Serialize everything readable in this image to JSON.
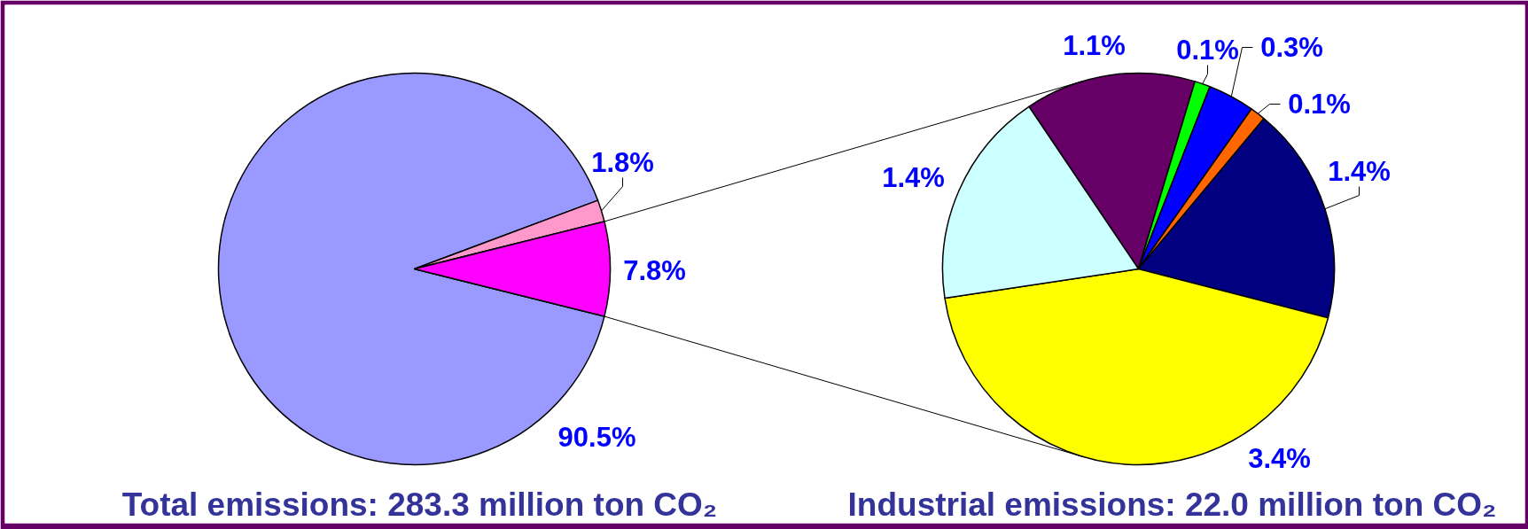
{
  "chart_data": [
    {
      "type": "pie",
      "title": "Total emissions: 283.3 million ton CO₂",
      "categories": [
        null,
        null,
        null
      ],
      "values": [
        90.5,
        1.8,
        7.8
      ],
      "colors": [
        "#9999ff",
        "#ff99cc",
        "#ff00ff"
      ],
      "value_labels": [
        "90.5%",
        "1.8%",
        "7.8%"
      ]
    },
    {
      "type": "pie",
      "title": "Industrial emissions: 22.0 million ton CO₂",
      "categories": [
        null,
        null,
        null,
        null,
        null,
        null,
        null
      ],
      "values": [
        1.1,
        0.1,
        0.3,
        0.1,
        1.4,
        3.4,
        1.4
      ],
      "colors": [
        "#660066",
        "#00ff00",
        "#0000ff",
        "#ff6600",
        "#000080",
        "#ffff00",
        "#ccffff"
      ],
      "value_labels": [
        "1.1%",
        "0.1%",
        "0.3%",
        "0.1%",
        "1.4%",
        "3.4%",
        "1.4%"
      ]
    }
  ]
}
